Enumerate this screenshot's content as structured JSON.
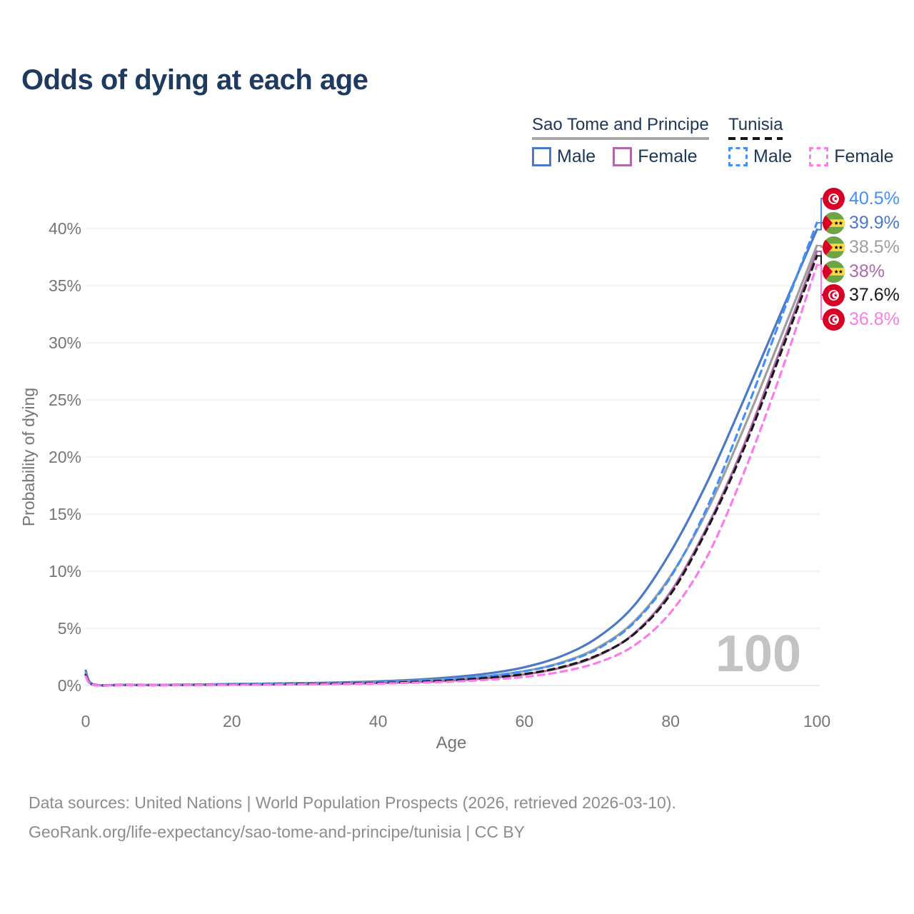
{
  "title": "Odds of dying at each age",
  "legend": {
    "groups": [
      {
        "name": "Sao Tome and Principe",
        "line_style": "solid",
        "underline_color": "#a8a8a8",
        "items": [
          {
            "label": "Male",
            "color": "#4b79c8",
            "dash": false
          },
          {
            "label": "Female",
            "color": "#ae6aa8",
            "dash": false
          }
        ]
      },
      {
        "name": "Tunisia",
        "line_style": "dashed",
        "underline_color": "#151515",
        "items": [
          {
            "label": "Male",
            "color": "#418ffd",
            "dash": true
          },
          {
            "label": "Female",
            "color": "#fb7ce8",
            "dash": true
          }
        ]
      }
    ]
  },
  "watermark": "100",
  "footer": {
    "line1": "Data sources: United Nations | World Population Prospects (2026, retrieved 2026-03-10).",
    "line2": "GeoRank.org/life-expectancy/sao-tome-and-principe/tunisia | CC BY"
  },
  "chart_data": {
    "type": "line",
    "title": "Odds of dying at each age",
    "xlabel": "Age",
    "ylabel": "Probability of dying",
    "xlim": [
      0,
      100
    ],
    "ylim_percent": [
      0,
      42
    ],
    "x_ticks": [
      0,
      20,
      40,
      60,
      80,
      100
    ],
    "x_tick_labels": [
      "0",
      "20",
      "40",
      "60",
      "80",
      "100"
    ],
    "y_ticks_percent": [
      0,
      5,
      10,
      15,
      20,
      25,
      30,
      35,
      40
    ],
    "y_tick_labels": [
      "0%",
      "5%",
      "10%",
      "15%",
      "20%",
      "25%",
      "30%",
      "35%",
      "40%"
    ],
    "grid": "horizontal",
    "legend_position": "top-right",
    "ages": [
      0,
      1,
      5,
      10,
      15,
      20,
      25,
      30,
      35,
      40,
      45,
      50,
      55,
      60,
      65,
      70,
      75,
      80,
      85,
      90,
      95,
      100
    ],
    "series": [
      {
        "name": "Sao Tome and Principe — Male",
        "country": "Sao Tome and Principe",
        "sex": "Male",
        "color": "#4b79c8",
        "dash": false,
        "flag": "sao-tome-and-principe",
        "end_label": "39.9%",
        "values_percent": [
          1.3,
          0.12,
          0.06,
          0.05,
          0.08,
          0.13,
          0.17,
          0.21,
          0.27,
          0.36,
          0.5,
          0.72,
          1.05,
          1.6,
          2.55,
          4.2,
          7.0,
          11.7,
          17.8,
          25.0,
          32.5,
          39.9
        ]
      },
      {
        "name": "Sao Tome and Principe — Both sexes",
        "country": "Sao Tome and Principe",
        "sex": "Both",
        "color": "#9e9e9e",
        "dash": false,
        "flag": "sao-tome-and-principe",
        "end_label": "38.5%",
        "values_percent": [
          1.1,
          0.1,
          0.05,
          0.04,
          0.06,
          0.1,
          0.13,
          0.16,
          0.21,
          0.28,
          0.39,
          0.56,
          0.82,
          1.25,
          2.0,
          3.3,
          5.6,
          9.6,
          15.3,
          22.5,
          30.4,
          38.5
        ]
      },
      {
        "name": "Sao Tome and Principe — Female",
        "country": "Sao Tome and Principe",
        "sex": "Female",
        "color": "#ae6aa8",
        "dash": false,
        "flag": "sao-tome-and-principe",
        "end_label": "38%",
        "values_percent": [
          0.95,
          0.09,
          0.04,
          0.04,
          0.05,
          0.07,
          0.09,
          0.12,
          0.16,
          0.21,
          0.3,
          0.43,
          0.64,
          0.97,
          1.55,
          2.6,
          4.55,
          8.2,
          13.9,
          21.0,
          29.4,
          38.0
        ]
      },
      {
        "name": "Tunisia — Male",
        "country": "Tunisia",
        "sex": "Male",
        "color": "#418ffd",
        "dash": true,
        "flag": "tunisia",
        "end_label": "40.5%",
        "values_percent": [
          1.0,
          0.08,
          0.04,
          0.04,
          0.06,
          0.1,
          0.13,
          0.16,
          0.2,
          0.27,
          0.38,
          0.55,
          0.82,
          1.25,
          1.95,
          3.2,
          5.5,
          9.5,
          15.6,
          23.5,
          32.0,
          40.5
        ]
      },
      {
        "name": "Tunisia — Both sexes",
        "country": "Tunisia",
        "sex": "Both",
        "color": "#1a1a1a",
        "dash": true,
        "flag": "tunisia",
        "end_label": "37.6%",
        "values_percent": [
          0.9,
          0.07,
          0.04,
          0.03,
          0.05,
          0.08,
          0.1,
          0.13,
          0.17,
          0.22,
          0.31,
          0.45,
          0.67,
          1.0,
          1.6,
          2.65,
          4.5,
          8.0,
          13.7,
          20.7,
          29.0,
          37.6
        ]
      },
      {
        "name": "Tunisia — Female",
        "country": "Tunisia",
        "sex": "Female",
        "color": "#fb7ce8",
        "dash": true,
        "flag": "tunisia",
        "end_label": "36.8%",
        "values_percent": [
          0.8,
          0.06,
          0.03,
          0.03,
          0.04,
          0.06,
          0.08,
          0.1,
          0.13,
          0.17,
          0.24,
          0.34,
          0.5,
          0.75,
          1.2,
          2.0,
          3.5,
          6.4,
          11.3,
          18.6,
          27.2,
          36.8
        ]
      }
    ]
  }
}
